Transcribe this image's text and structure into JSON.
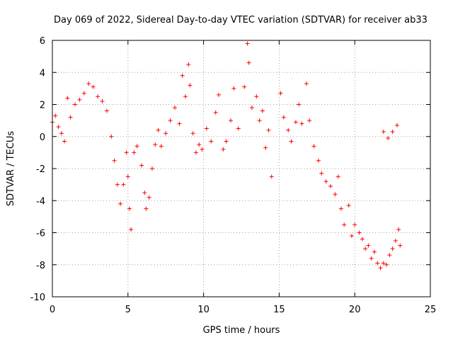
{
  "chart_data": {
    "type": "scatter",
    "title": "Day 069 of 2022, Sidereal Day-to-day VTEC variation (SDTVAR) for receiver ab33",
    "xlabel": "GPS time / hours",
    "ylabel": "SDTVAR / TECUs",
    "xlim": [
      0,
      25
    ],
    "ylim": [
      -10,
      6
    ],
    "x_ticks": [
      0,
      5,
      10,
      15,
      20,
      25
    ],
    "x_tick_labels": [
      "0",
      "5",
      "10",
      "15",
      "20",
      "25"
    ],
    "y_ticks": [
      -10,
      -8,
      -6,
      -4,
      -2,
      0,
      2,
      4,
      6
    ],
    "y_tick_labels": [
      "-10",
      "-8",
      "-6",
      "-4",
      "-2",
      "0",
      "2",
      "4",
      "6"
    ],
    "grid": true,
    "marker": "plus",
    "color": "#ff0000",
    "series": [
      {
        "name": "SDTVAR",
        "points": [
          [
            0.0,
            0.9
          ],
          [
            0.2,
            1.3
          ],
          [
            0.4,
            0.6
          ],
          [
            0.6,
            0.2
          ],
          [
            0.8,
            -0.3
          ],
          [
            1.0,
            2.4
          ],
          [
            1.2,
            1.2
          ],
          [
            1.5,
            2.0
          ],
          [
            1.8,
            2.3
          ],
          [
            2.1,
            2.7
          ],
          [
            2.4,
            3.3
          ],
          [
            2.7,
            3.1
          ],
          [
            3.0,
            2.5
          ],
          [
            3.3,
            2.2
          ],
          [
            3.6,
            1.6
          ],
          [
            3.9,
            0.0
          ],
          [
            4.1,
            -1.5
          ],
          [
            4.3,
            -3.0
          ],
          [
            4.5,
            -4.2
          ],
          [
            4.7,
            -3.0
          ],
          [
            4.9,
            -1.0
          ],
          [
            5.0,
            -2.5
          ],
          [
            5.1,
            -4.5
          ],
          [
            5.2,
            -5.8
          ],
          [
            5.4,
            -1.0
          ],
          [
            5.6,
            -0.6
          ],
          [
            5.9,
            -1.8
          ],
          [
            6.1,
            -3.5
          ],
          [
            6.2,
            -4.5
          ],
          [
            6.4,
            -3.8
          ],
          [
            6.6,
            -2.0
          ],
          [
            6.8,
            -0.5
          ],
          [
            7.0,
            0.4
          ],
          [
            7.2,
            -0.6
          ],
          [
            7.5,
            0.2
          ],
          [
            7.8,
            1.0
          ],
          [
            8.1,
            1.8
          ],
          [
            8.4,
            0.8
          ],
          [
            8.6,
            3.8
          ],
          [
            8.8,
            2.5
          ],
          [
            9.0,
            4.5
          ],
          [
            9.1,
            3.2
          ],
          [
            9.3,
            0.2
          ],
          [
            9.5,
            -1.0
          ],
          [
            9.7,
            -0.5
          ],
          [
            9.9,
            -0.8
          ],
          [
            10.2,
            0.5
          ],
          [
            10.5,
            -0.3
          ],
          [
            10.8,
            1.5
          ],
          [
            11.0,
            2.6
          ],
          [
            11.3,
            -0.8
          ],
          [
            11.5,
            -0.3
          ],
          [
            11.8,
            1.0
          ],
          [
            12.0,
            3.0
          ],
          [
            12.3,
            0.5
          ],
          [
            12.7,
            3.1
          ],
          [
            12.9,
            5.8
          ],
          [
            13.0,
            4.6
          ],
          [
            13.2,
            1.8
          ],
          [
            13.5,
            2.5
          ],
          [
            13.7,
            1.0
          ],
          [
            13.9,
            1.6
          ],
          [
            14.1,
            -0.7
          ],
          [
            14.3,
            0.4
          ],
          [
            14.5,
            -2.5
          ],
          [
            15.1,
            2.7
          ],
          [
            15.3,
            1.2
          ],
          [
            15.6,
            0.4
          ],
          [
            15.8,
            -0.3
          ],
          [
            16.1,
            0.9
          ],
          [
            16.3,
            2.0
          ],
          [
            16.5,
            0.8
          ],
          [
            16.8,
            3.3
          ],
          [
            17.0,
            1.0
          ],
          [
            17.3,
            -0.6
          ],
          [
            17.6,
            -1.5
          ],
          [
            17.8,
            -2.3
          ],
          [
            18.1,
            -2.8
          ],
          [
            18.4,
            -3.1
          ],
          [
            18.7,
            -3.6
          ],
          [
            18.9,
            -2.5
          ],
          [
            19.1,
            -4.5
          ],
          [
            19.3,
            -5.5
          ],
          [
            19.6,
            -4.3
          ],
          [
            19.8,
            -6.2
          ],
          [
            20.0,
            -5.5
          ],
          [
            20.3,
            -6.0
          ],
          [
            20.5,
            -6.4
          ],
          [
            20.7,
            -7.0
          ],
          [
            20.9,
            -6.8
          ],
          [
            21.1,
            -7.6
          ],
          [
            21.3,
            -7.2
          ],
          [
            21.5,
            -7.9
          ],
          [
            21.7,
            -8.2
          ],
          [
            21.9,
            -7.9
          ],
          [
            22.1,
            -8.0
          ],
          [
            22.3,
            -7.4
          ],
          [
            22.5,
            -7.0
          ],
          [
            22.7,
            -6.5
          ],
          [
            22.9,
            -5.8
          ],
          [
            23.0,
            -6.8
          ],
          [
            21.9,
            0.3
          ],
          [
            22.2,
            -0.1
          ],
          [
            22.5,
            0.3
          ],
          [
            22.8,
            0.7
          ]
        ]
      }
    ]
  }
}
